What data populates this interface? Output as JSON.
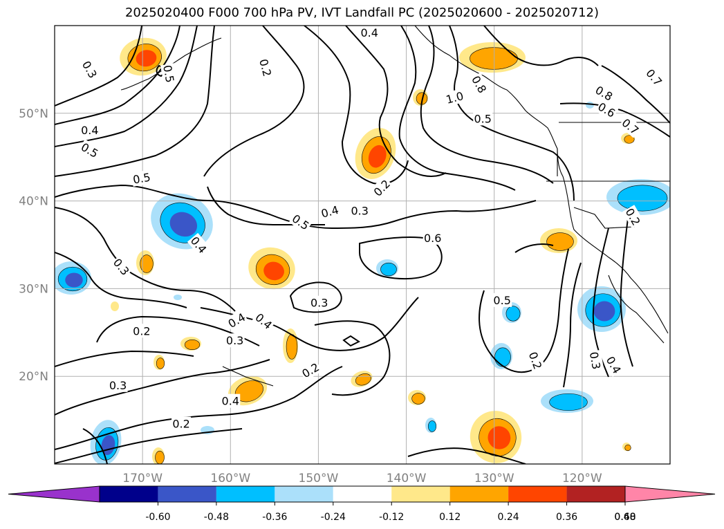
{
  "title": "2025020400 F000 700 hPa PV, IVT Landfall PC (2025020600 - 2025020712)",
  "map": {
    "lon_range": [
      -180,
      -110
    ],
    "lat_range": [
      10,
      60
    ],
    "lon_ticks": [
      {
        "lon": -170,
        "label": "170°W"
      },
      {
        "lon": -160,
        "label": "160°W"
      },
      {
        "lon": -150,
        "label": "150°W"
      },
      {
        "lon": -140,
        "label": "140°W"
      },
      {
        "lon": -130,
        "label": "130°W"
      },
      {
        "lon": -120,
        "label": "120°W"
      }
    ],
    "lat_ticks": [
      {
        "lat": 50,
        "label": "50°N"
      },
      {
        "lat": 40,
        "label": "40°N"
      },
      {
        "lat": 30,
        "label": "30°N"
      },
      {
        "lat": 20,
        "label": "20°N"
      }
    ],
    "grid": true
  },
  "contour_labels": [
    {
      "text": "0.4",
      "lon": -144.2,
      "lat": 59.2,
      "rot": 0
    },
    {
      "text": "0.3",
      "lon": -176,
      "lat": 55,
      "rot": 60
    },
    {
      "text": "0.5",
      "lon": -167,
      "lat": 54.5,
      "rot": 80
    },
    {
      "text": "0.2",
      "lon": -156,
      "lat": 55.2,
      "rot": 75
    },
    {
      "text": "0.4",
      "lon": -176,
      "lat": 48.1,
      "rot": 0
    },
    {
      "text": "0.5",
      "lon": -176,
      "lat": 45.8,
      "rot": 30
    },
    {
      "text": "0.5",
      "lon": -170.1,
      "lat": 42.6,
      "rot": -10
    },
    {
      "text": "1.0",
      "lon": -134.5,
      "lat": 51.8,
      "rot": -15
    },
    {
      "text": "0.8",
      "lon": -131.7,
      "lat": 53.3,
      "rot": 60
    },
    {
      "text": "0.5",
      "lon": -131.3,
      "lat": 49.4,
      "rot": 0
    },
    {
      "text": "0.8",
      "lon": -117.5,
      "lat": 52.3,
      "rot": 30
    },
    {
      "text": "0.6",
      "lon": -117.2,
      "lat": 50.4,
      "rot": 30
    },
    {
      "text": "0.7",
      "lon": -114.5,
      "lat": 48.5,
      "rot": 40
    },
    {
      "text": "0.7",
      "lon": -111.8,
      "lat": 54.1,
      "rot": 50
    },
    {
      "text": "0.2",
      "lon": -142.8,
      "lat": 41.5,
      "rot": -45
    },
    {
      "text": "0.3",
      "lon": -145.3,
      "lat": 38.9,
      "rot": 0
    },
    {
      "text": "0.4",
      "lon": -148.7,
      "lat": 38.8,
      "rot": -15
    },
    {
      "text": "0.5",
      "lon": -152,
      "lat": 37.6,
      "rot": 35
    },
    {
      "text": "0.4",
      "lon": -163.6,
      "lat": 35,
      "rot": 50
    },
    {
      "text": "0.6",
      "lon": -137,
      "lat": 35.8,
      "rot": 0
    },
    {
      "text": "0.2",
      "lon": -114.2,
      "lat": 38.2,
      "rot": 60
    },
    {
      "text": "0.3",
      "lon": -172.4,
      "lat": 32.5,
      "rot": 50
    },
    {
      "text": "0.3",
      "lon": -149.9,
      "lat": 28.4,
      "rot": 0
    },
    {
      "text": "0.5",
      "lon": -129.1,
      "lat": 28.7,
      "rot": 0
    },
    {
      "text": "0.4",
      "lon": -159.3,
      "lat": 26.4,
      "rot": -30
    },
    {
      "text": "0.4",
      "lon": -156.2,
      "lat": 26.3,
      "rot": 40
    },
    {
      "text": "0.2",
      "lon": -170.1,
      "lat": 25.2,
      "rot": 0
    },
    {
      "text": "0.3",
      "lon": -159.5,
      "lat": 24.1,
      "rot": 0
    },
    {
      "text": "0.2",
      "lon": -125.3,
      "lat": 21.8,
      "rot": 70
    },
    {
      "text": "0.3",
      "lon": -118.5,
      "lat": 21.8,
      "rot": 80
    },
    {
      "text": "0.4",
      "lon": -116.4,
      "lat": 21.3,
      "rot": 60
    },
    {
      "text": "0.2",
      "lon": -150.9,
      "lat": 20.7,
      "rot": -30
    },
    {
      "text": "0.3",
      "lon": -172.8,
      "lat": 19,
      "rot": 0
    },
    {
      "text": "0.4",
      "lon": -160,
      "lat": 17.2,
      "rot": 0
    },
    {
      "text": "0.2",
      "lon": -165.6,
      "lat": 14.6,
      "rot": 0
    }
  ],
  "colorbar": {
    "ticks": [
      "-0.60",
      "-0.48",
      "-0.36",
      "-0.24",
      "-0.12",
      "0.12",
      "0.24",
      "0.36",
      "0.48",
      "0.60"
    ],
    "colors": [
      "#9932cc",
      "#00008b",
      "#3a56c8",
      "#00bfff",
      "#abe0fa",
      "#ffffff",
      "#ffe88a",
      "#ffa500",
      "#ff4500",
      "#b22222",
      "#ff85a8"
    ]
  },
  "fill_colors": {
    "pos1": "#ffe88a",
    "pos2": "#ffa500",
    "pos3": "#ff4500",
    "neg1": "#abe0fa",
    "neg2": "#00bfff",
    "neg3": "#3a56c8"
  }
}
